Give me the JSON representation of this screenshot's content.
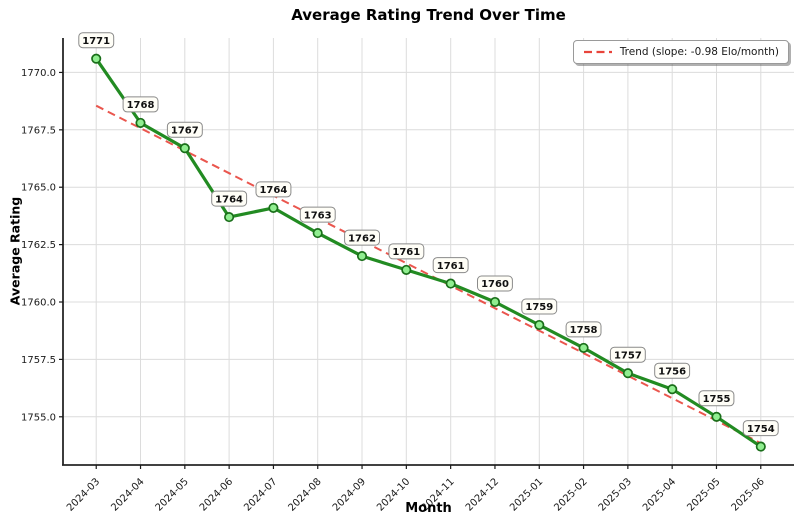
{
  "chart_data": {
    "type": "line",
    "title": "Average Rating Trend Over Time",
    "xlabel": "Month",
    "ylabel": "Average Rating",
    "categories": [
      "2024-03",
      "2024-04",
      "2024-05",
      "2024-06",
      "2024-07",
      "2024-08",
      "2024-09",
      "2024-10",
      "2024-11",
      "2024-12",
      "2025-01",
      "2025-02",
      "2025-03",
      "2025-04",
      "2025-05",
      "2025-06"
    ],
    "series": [
      {
        "name": "Average Rating",
        "values": [
          1770.6,
          1767.8,
          1766.7,
          1763.7,
          1764.1,
          1763.0,
          1762.0,
          1761.4,
          1760.8,
          1760.0,
          1759.0,
          1758.0,
          1756.9,
          1756.2,
          1755.0,
          1753.7
        ],
        "point_labels": [
          "1771",
          "1768",
          "1767",
          "1764",
          "1764",
          "1763",
          "1762",
          "1761",
          "1761",
          "1760",
          "1759",
          "1758",
          "1757",
          "1756",
          "1755",
          "1754"
        ],
        "line_color": "#228B22",
        "marker_fill": "#90EE90",
        "marker_edge": "#1a6e1a"
      },
      {
        "name": "Trend",
        "style": "dashed",
        "endpoint_values": [
          1768.55,
          1753.85
        ],
        "line_color": "#e8443b"
      }
    ],
    "legend": {
      "label": "Trend (slope: -0.98 Elo/month)",
      "position": "upper right"
    },
    "yticks": [
      "1755.0",
      "1757.5",
      "1760.0",
      "1762.5",
      "1765.0",
      "1767.5",
      "1770.0"
    ],
    "ylim": [
      1752.9,
      1771.5
    ],
    "grid": true,
    "colors": {
      "grid": "#dcdcdc",
      "spine": "#262626",
      "tick": "#1a1a1a",
      "label_box_bg": "#fffef7",
      "label_box_border": "#8a8a8a",
      "text": "#1a1a1a"
    }
  }
}
